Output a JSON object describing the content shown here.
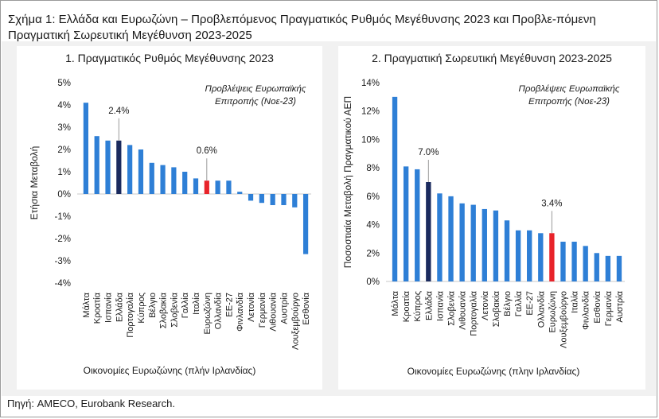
{
  "figure": {
    "title": "Σχήμα 1: Ελλάδα και Ευρωζώνη – Προβλεπόμενος Πραγματικός Ρυθμός Μεγέθυνσης 2023 και Προβλε-πόμενη Πραγματική Σωρευτική Μεγέθυνση 2023-2025",
    "source": "Πηγή: AMECO, Eurobank Research."
  },
  "colors": {
    "bar_default": "#2e7fd6",
    "bar_greece": "#1a2a5e",
    "bar_eurozone": "#e8232a",
    "axis": "#c8c8c8",
    "annotation_line": "#999999"
  },
  "chart_data": [
    {
      "type": "bar",
      "title": "1. Πραγματικός Ρυθμός Μεγέθυνσης 2023",
      "ylabel": "Ετήσια Μεταβολή",
      "xlabel": "Οικονομίες Ευρωζώνης (πλήν Ιρλανδίας)",
      "annotation_note": "Προβλέψεις Ευρωπαϊκής Επιτροπής (Νοε-23)",
      "ylim": [
        -4,
        5
      ],
      "yticks": [
        5,
        4,
        3,
        2,
        1,
        0,
        -1,
        -2,
        -3,
        -4
      ],
      "ytick_format": "percent",
      "categories": [
        "Μάλτα",
        "Κροατία",
        "Ισπανία",
        "Ελλάδα",
        "Πορτογαλία",
        "Κύπρος",
        "Βέλγιο",
        "Σλοβακία",
        "Σλοβενία",
        "Γαλλία",
        "Ιταλία",
        "Ευρωζώνη",
        "Ολλανδία",
        "ΕΕ-27",
        "Φινλανδία",
        "Λετονία",
        "Γερμανία",
        "Λιθουανία",
        "Αυστρία",
        "Λουξεμβούργο",
        "Εσθονία"
      ],
      "values": [
        4.1,
        2.6,
        2.4,
        2.4,
        2.2,
        2.0,
        1.4,
        1.3,
        1.2,
        1.0,
        0.7,
        0.6,
        0.6,
        0.6,
        0.1,
        -0.3,
        -0.4,
        -0.5,
        -0.5,
        -0.6,
        -2.7
      ],
      "highlights": {
        "Ελλάδα": "greece",
        "Ευρωζώνη": "eurozone"
      },
      "data_labels": [
        {
          "category": "Ελλάδα",
          "text": "2.4%"
        },
        {
          "category": "Ευρωζώνη",
          "text": "0.6%"
        }
      ]
    },
    {
      "type": "bar",
      "title": "2. Πραγματική Σωρευτική Μεγέθυνση 2023-2025",
      "ylabel": "Ποσοστιαία Μεταβολή Πραγματικού ΑΕΠ",
      "xlabel": "Οικονομίες Ευρωζώνης (πλην Ιρλανδίας)",
      "annotation_note": "Προβλέψεις Ευρωπαϊκής Επιτροπής (Νοε-23)",
      "ylim": [
        0,
        14
      ],
      "yticks": [
        14,
        12,
        10,
        8,
        6,
        4,
        2,
        0
      ],
      "ytick_format": "percent",
      "categories": [
        "Μάλτα",
        "Κροατία",
        "Κύπρος",
        "Ελλάδα",
        "Ισπανία",
        "Σλοβενία",
        "Λιθουανία",
        "Πορτογαλία",
        "Λετονία",
        "Σλοβακία",
        "Βέλγιο",
        "Γαλλία",
        "ΕΕ-27",
        "Ολλανδία",
        "Ευρωζώνη",
        "Λουξεμβούργο",
        "Ιταλία",
        "Φινλανδία",
        "Εσθονία",
        "Γερμανία",
        "Αυστρία"
      ],
      "values": [
        13.0,
        8.1,
        7.9,
        7.0,
        6.2,
        6.0,
        5.5,
        5.4,
        5.1,
        5.0,
        4.3,
        3.6,
        3.6,
        3.4,
        3.4,
        2.8,
        2.8,
        2.5,
        2.0,
        1.8,
        1.8
      ],
      "highlights": {
        "Ελλάδα": "greece",
        "Ευρωζώνη": "eurozone"
      },
      "data_labels": [
        {
          "category": "Ελλάδα",
          "text": "7.0%"
        },
        {
          "category": "Ευρωζώνη",
          "text": "3.4%"
        }
      ]
    }
  ]
}
